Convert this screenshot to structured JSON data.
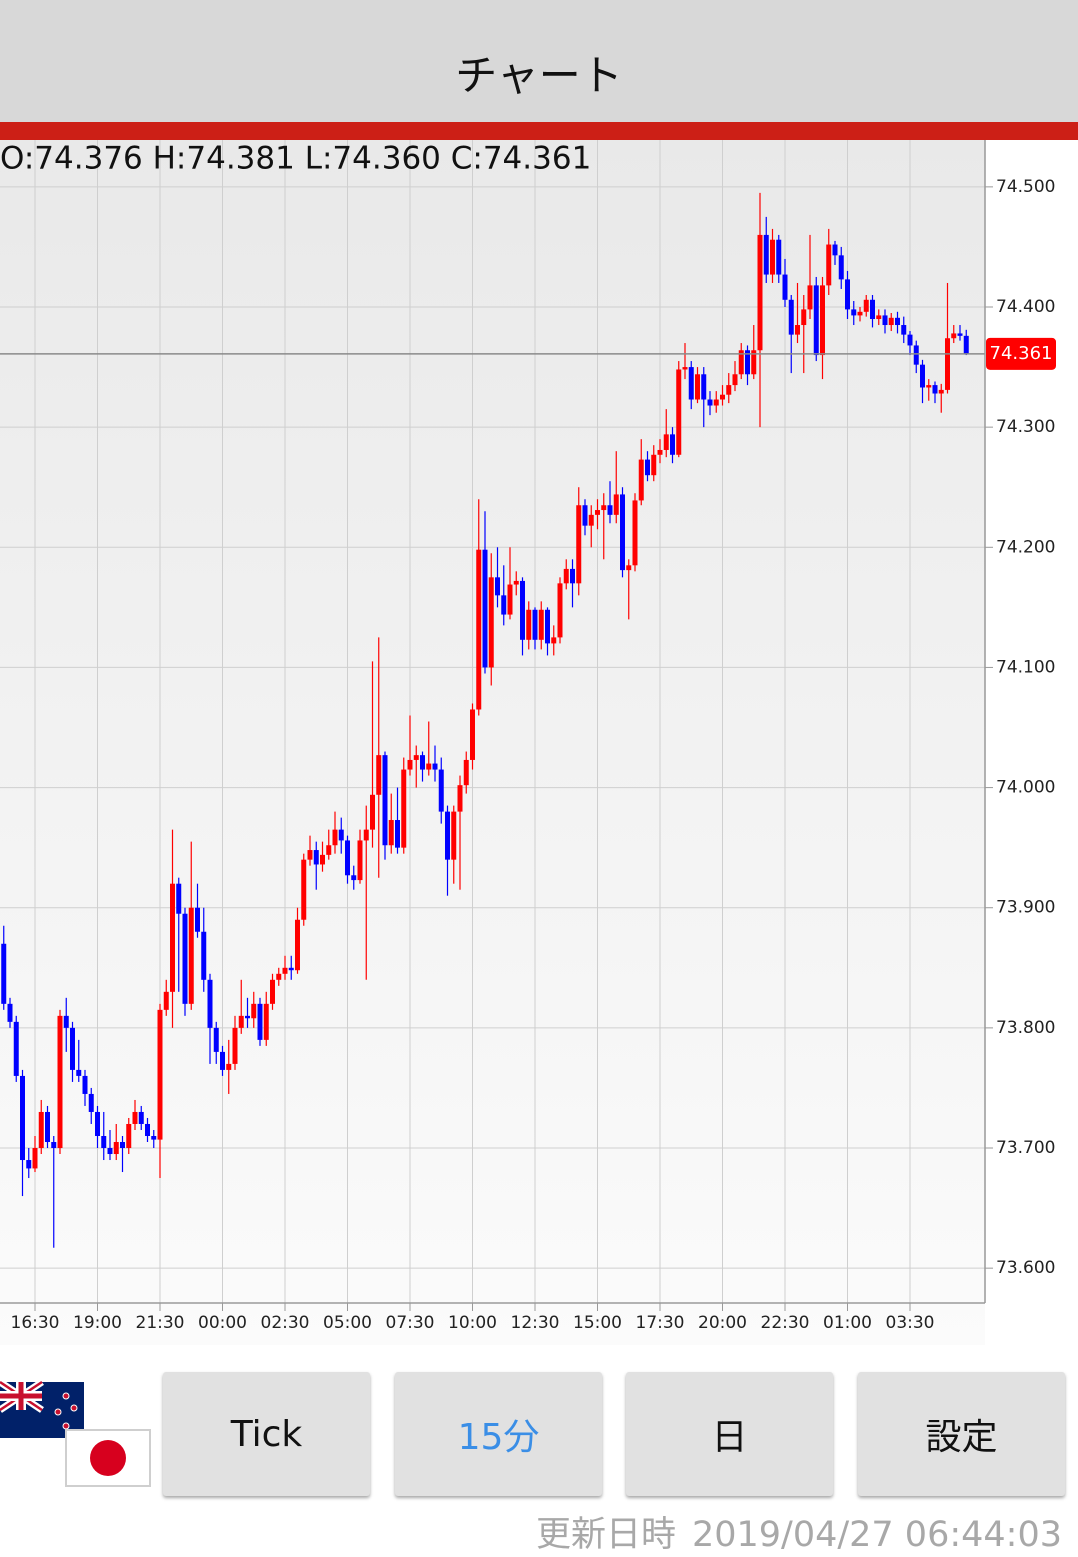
{
  "app": {
    "title": "チャート",
    "buttons": [
      "Tick",
      "15分",
      "日",
      "設定"
    ],
    "updated_label": "更新日時",
    "updated_at": "2019/04/27 06:44:03"
  },
  "chart_data": {
    "type": "candlestick",
    "ohlc_header": "O:74.376 H:74.381 L:74.360 C:74.361",
    "last_price": 74.361,
    "up_color": "#ff0000",
    "down_color": "#0000ff",
    "grid": true,
    "xlim": [
      -0.6,
      157
    ],
    "xticks": [
      {
        "value": 5,
        "label": "16:30"
      },
      {
        "value": 15,
        "label": "19:00"
      },
      {
        "value": 25,
        "label": "21:30"
      },
      {
        "value": 35,
        "label": "00:00"
      },
      {
        "value": 45,
        "label": "02:30"
      },
      {
        "value": 55,
        "label": "05:00"
      },
      {
        "value": 65,
        "label": "07:30"
      },
      {
        "value": 75,
        "label": "10:00"
      },
      {
        "value": 85,
        "label": "12:30"
      },
      {
        "value": 95,
        "label": "15:00"
      },
      {
        "value": 105,
        "label": "17:30"
      },
      {
        "value": 115,
        "label": "20:00"
      },
      {
        "value": 125,
        "label": "22:30"
      },
      {
        "value": 135,
        "label": "01:00"
      },
      {
        "value": 145,
        "label": "03:30"
      }
    ],
    "ylim": [
      73.571,
      74.539
    ],
    "yticks": [
      {
        "value": 73.6,
        "label": "73.600"
      },
      {
        "value": 73.7,
        "label": "73.700"
      },
      {
        "value": 73.8,
        "label": "73.800"
      },
      {
        "value": 73.9,
        "label": "73.900"
      },
      {
        "value": 74.0,
        "label": "74.000"
      },
      {
        "value": 74.1,
        "label": "74.100"
      },
      {
        "value": 74.2,
        "label": "74.200"
      },
      {
        "value": 74.3,
        "label": "74.300"
      },
      {
        "value": 74.4,
        "label": "74.400"
      },
      {
        "value": 74.5,
        "label": "74.500"
      }
    ],
    "open": [
      73.87,
      73.82,
      73.805,
      73.76,
      73.69,
      73.683,
      73.7,
      73.73,
      73.705,
      73.7,
      73.81,
      73.8,
      73.765,
      73.76,
      73.745,
      73.73,
      73.71,
      73.7,
      73.695,
      73.705,
      73.7,
      73.72,
      73.73,
      73.72,
      73.71,
      73.707,
      73.815,
      73.83,
      73.92,
      73.895,
      73.82,
      73.9,
      73.88,
      73.84,
      73.8,
      73.78,
      73.765,
      73.77,
      73.8,
      73.81,
      73.808,
      73.82,
      73.79,
      73.82,
      73.84,
      73.845,
      73.85,
      73.848,
      73.89,
      73.94,
      73.948,
      73.936,
      73.944,
      73.952,
      73.965,
      73.956,
      73.927,
      73.923,
      73.956,
      73.965,
      73.994,
      74.027,
      73.952,
      73.973,
      73.95,
      74.015,
      74.023,
      74.027,
      74.015,
      74.02,
      74.015,
      73.98,
      73.94,
      73.98,
      74.002,
      74.023,
      74.065,
      74.198,
      74.1,
      74.175,
      74.16,
      74.144,
      74.169,
      74.172,
      74.123,
      74.148,
      74.123,
      74.148,
      74.12,
      74.125,
      74.17,
      74.182,
      74.17,
      74.235,
      74.218,
      74.227,
      74.231,
      74.235,
      74.227,
      74.244,
      74.181,
      74.185,
      74.239,
      74.273,
      74.26,
      74.277,
      74.281,
      74.294,
      74.277,
      74.348,
      74.35,
      74.323,
      74.344,
      74.323,
      74.318,
      74.323,
      74.327,
      74.335,
      74.344,
      74.364,
      74.344,
      74.364,
      74.46,
      74.427,
      74.456,
      74.427,
      74.406,
      74.377,
      74.385,
      74.398,
      74.418,
      74.36,
      74.418,
      74.452,
      74.443,
      74.423,
      74.398,
      74.393,
      74.396,
      74.406,
      74.39,
      74.393,
      74.385,
      74.391,
      74.385,
      74.377,
      74.368,
      74.352,
      74.333,
      74.335,
      74.328,
      74.331,
      74.374,
      74.378,
      74.376
    ],
    "high": [
      73.885,
      73.825,
      73.81,
      73.765,
      73.7,
      73.71,
      73.74,
      73.735,
      73.71,
      73.815,
      73.825,
      73.805,
      73.79,
      73.765,
      73.75,
      73.735,
      73.73,
      73.715,
      73.72,
      73.71,
      73.725,
      73.74,
      73.735,
      73.725,
      73.715,
      73.82,
      73.84,
      73.965,
      73.925,
      73.9,
      73.955,
      73.92,
      73.9,
      73.845,
      73.805,
      73.785,
      73.79,
      73.81,
      73.84,
      73.825,
      73.83,
      73.825,
      73.83,
      73.845,
      73.85,
      73.86,
      73.86,
      73.9,
      73.945,
      73.96,
      73.955,
      73.955,
      73.965,
      73.98,
      73.975,
      73.96,
      73.935,
      73.965,
      73.985,
      74.105,
      74.125,
      74.03,
      73.995,
      74.0,
      74.025,
      74.06,
      74.035,
      74.03,
      74.055,
      74.035,
      74.025,
      73.985,
      73.985,
      74.01,
      74.03,
      74.07,
      74.24,
      74.23,
      74.195,
      74.2,
      74.185,
      74.2,
      74.18,
      74.175,
      74.155,
      74.15,
      74.155,
      74.15,
      74.135,
      74.175,
      74.19,
      74.19,
      74.25,
      74.24,
      74.235,
      74.24,
      74.245,
      74.255,
      74.28,
      74.25,
      74.19,
      74.245,
      74.29,
      74.28,
      74.285,
      74.29,
      74.315,
      74.3,
      74.355,
      74.37,
      74.355,
      74.35,
      74.35,
      74.33,
      74.33,
      74.335,
      74.345,
      74.355,
      74.37,
      74.368,
      74.385,
      74.495,
      74.475,
      74.465,
      74.46,
      74.44,
      74.41,
      74.42,
      74.41,
      74.46,
      74.425,
      74.425,
      74.465,
      74.455,
      74.45,
      74.43,
      74.405,
      74.4,
      74.41,
      74.41,
      74.398,
      74.398,
      74.395,
      74.396,
      74.392,
      74.38,
      74.372,
      74.356,
      74.34,
      74.338,
      74.336,
      74.42,
      74.385,
      74.385,
      74.381
    ],
    "low": [
      73.815,
      73.8,
      73.755,
      73.66,
      73.675,
      73.68,
      73.695,
      73.7,
      73.617,
      73.695,
      73.78,
      73.755,
      73.755,
      73.735,
      73.72,
      73.7,
      73.69,
      73.69,
      73.69,
      73.68,
      73.695,
      73.715,
      73.715,
      73.705,
      73.7,
      73.675,
      73.81,
      73.8,
      73.83,
      73.81,
      73.815,
      73.875,
      73.83,
      73.77,
      73.77,
      73.76,
      73.745,
      73.765,
      73.795,
      73.8,
      73.8,
      73.785,
      73.785,
      73.815,
      73.835,
      73.84,
      73.84,
      73.845,
      73.885,
      73.935,
      73.915,
      73.93,
      73.94,
      73.945,
      73.945,
      73.92,
      73.915,
      73.92,
      73.84,
      73.95,
      73.925,
      73.94,
      73.945,
      73.945,
      73.945,
      74.01,
      74.0,
      74.005,
      74.01,
      74.005,
      73.97,
      73.91,
      73.92,
      73.915,
      73.995,
      74.015,
      74.06,
      74.095,
      74.085,
      74.15,
      74.135,
      74.14,
      74.16,
      74.11,
      74.115,
      74.115,
      74.115,
      74.11,
      74.11,
      74.12,
      74.165,
      74.15,
      74.16,
      74.21,
      74.2,
      74.215,
      74.19,
      74.22,
      74.22,
      74.175,
      74.14,
      74.18,
      74.235,
      74.255,
      74.255,
      74.27,
      74.275,
      74.27,
      74.275,
      74.34,
      74.315,
      74.32,
      74.3,
      74.31,
      74.312,
      74.318,
      74.32,
      74.33,
      74.34,
      74.335,
      74.34,
      74.3,
      74.42,
      74.42,
      74.42,
      74.4,
      74.345,
      74.37,
      74.345,
      74.39,
      74.355,
      74.34,
      74.41,
      74.435,
      74.415,
      74.39,
      74.385,
      74.388,
      74.392,
      74.383,
      74.385,
      74.378,
      74.38,
      74.378,
      74.37,
      74.36,
      74.345,
      74.32,
      74.322,
      74.32,
      74.312,
      74.328,
      74.37,
      74.372,
      74.36
    ],
    "close": [
      73.82,
      73.805,
      73.76,
      73.69,
      73.683,
      73.7,
      73.73,
      73.705,
      73.7,
      73.81,
      73.8,
      73.765,
      73.76,
      73.745,
      73.73,
      73.71,
      73.7,
      73.695,
      73.705,
      73.7,
      73.72,
      73.73,
      73.72,
      73.71,
      73.707,
      73.815,
      73.83,
      73.92,
      73.895,
      73.82,
      73.9,
      73.88,
      73.84,
      73.8,
      73.78,
      73.765,
      73.77,
      73.8,
      73.81,
      73.808,
      73.82,
      73.79,
      73.82,
      73.84,
      73.845,
      73.85,
      73.848,
      73.89,
      73.94,
      73.948,
      73.936,
      73.944,
      73.952,
      73.965,
      73.956,
      73.927,
      73.923,
      73.956,
      73.965,
      73.994,
      74.027,
      73.952,
      73.973,
      73.95,
      74.015,
      74.023,
      74.027,
      74.015,
      74.02,
      74.015,
      73.98,
      73.94,
      73.98,
      74.002,
      74.023,
      74.065,
      74.198,
      74.1,
      74.175,
      74.16,
      74.144,
      74.169,
      74.172,
      74.123,
      74.148,
      74.123,
      74.148,
      74.12,
      74.125,
      74.17,
      74.182,
      74.17,
      74.235,
      74.218,
      74.227,
      74.231,
      74.235,
      74.227,
      74.244,
      74.181,
      74.185,
      74.239,
      74.273,
      74.26,
      74.277,
      74.281,
      74.294,
      74.277,
      74.348,
      74.35,
      74.323,
      74.344,
      74.323,
      74.318,
      74.323,
      74.327,
      74.335,
      74.344,
      74.364,
      74.344,
      74.364,
      74.46,
      74.427,
      74.456,
      74.427,
      74.406,
      74.377,
      74.385,
      74.398,
      74.418,
      74.36,
      74.418,
      74.452,
      74.443,
      74.423,
      74.398,
      74.393,
      74.396,
      74.406,
      74.39,
      74.393,
      74.385,
      74.391,
      74.385,
      74.377,
      74.368,
      74.352,
      74.333,
      74.335,
      74.328,
      74.331,
      74.374,
      74.378,
      74.376,
      74.361
    ]
  }
}
